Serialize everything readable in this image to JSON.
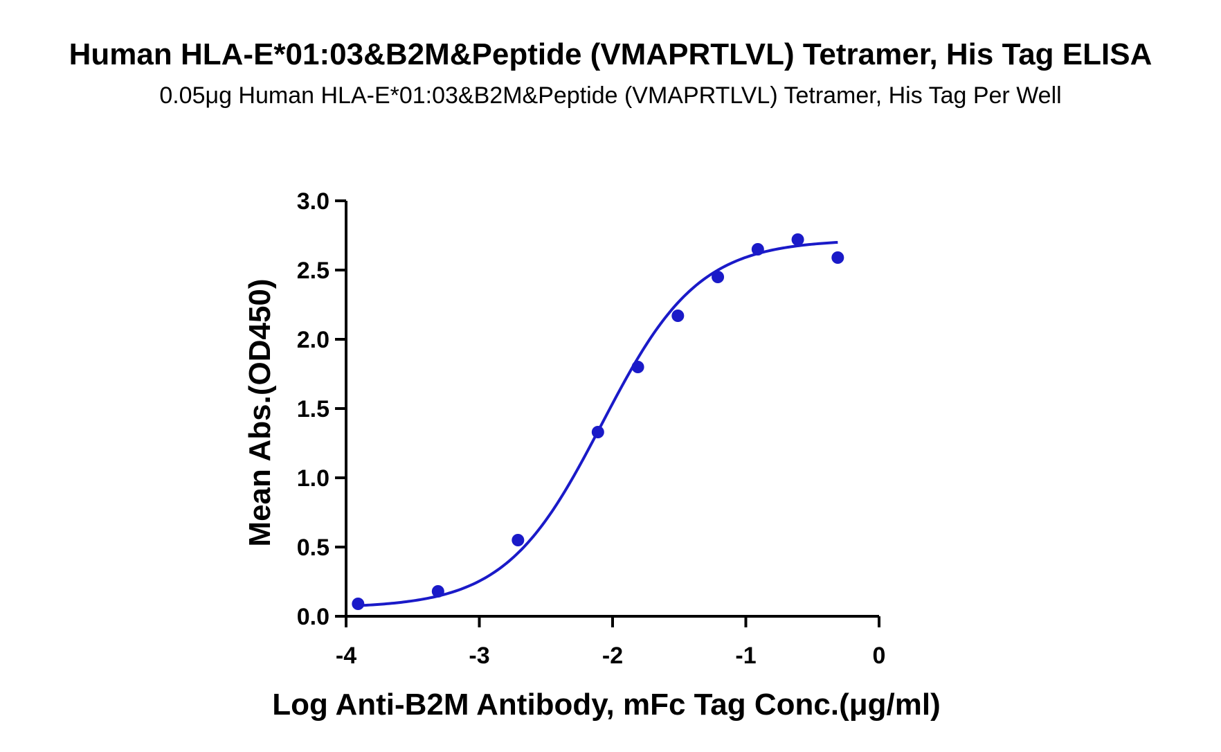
{
  "chart_data": {
    "type": "scatter",
    "title": "Human HLA-E*01:03&B2M&Peptide (VMAPRTLVL) Tetramer, His Tag ELISA",
    "subtitle": "0.05μg Human HLA-E*01:03&B2M&Peptide (VMAPRTLVL) Tetramer, His Tag Per Well",
    "xlabel": "Log Anti-B2M Antibody, mFc Tag Conc.(μg/ml)",
    "ylabel": "Mean Abs.(OD450)",
    "xlim": [
      -4,
      0
    ],
    "ylim": [
      0,
      3.0
    ],
    "xticks": [
      -4,
      -3,
      -2,
      -1,
      0
    ],
    "xtick_labels": [
      "-4",
      "-3",
      "-2",
      "-1",
      "0"
    ],
    "yticks": [
      0,
      0.5,
      1.0,
      1.5,
      2.0,
      2.5,
      3.0
    ],
    "ytick_labels": [
      "0.0",
      "0.5",
      "1.0",
      "1.5",
      "2.0",
      "2.5",
      "3.0"
    ],
    "grid": false,
    "color": "#1a1ac8",
    "series": [
      {
        "x": [
          -3.91,
          -3.31,
          -2.71,
          -2.11,
          -1.81,
          -1.51,
          -1.21,
          -0.91,
          -0.61,
          -0.31
        ],
        "y": [
          0.09,
          0.18,
          0.55,
          1.33,
          1.8,
          2.17,
          2.45,
          2.65,
          2.72,
          2.59
        ]
      }
    ],
    "fit_curve": {
      "model": "4PL",
      "bottom": 0.06,
      "top": 2.72,
      "log_ec50": -2.08,
      "hill_slope": 1.2,
      "x_range": [
        -3.91,
        -0.31
      ]
    }
  }
}
